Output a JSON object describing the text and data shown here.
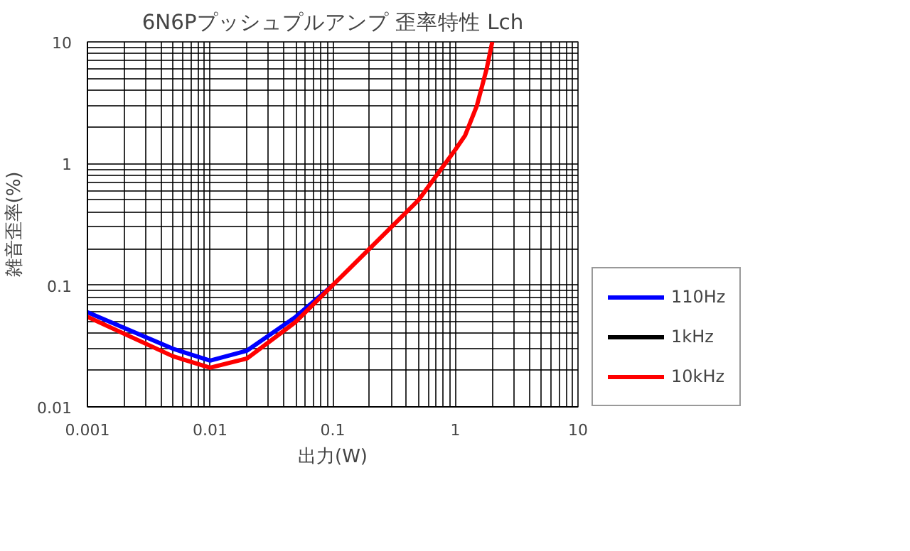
{
  "chart_data": {
    "type": "line",
    "title": "6N6Pプッシュプルアンプ 歪率特性 Lch",
    "xlabel": "出力(W)",
    "ylabel": "雑音歪率(%)",
    "log": "xy",
    "grid": true,
    "legend": "right",
    "xlim": [
      0.001,
      10
    ],
    "ylim": [
      0.01,
      10
    ],
    "xticks": [
      0.001,
      {
        "value": 0.002,
        "label": null
      },
      {
        "value": 0.003,
        "label": null
      },
      {
        "value": 0.004,
        "label": null
      },
      {
        "value": 0.005,
        "label": null
      },
      {
        "value": 0.006,
        "label": null
      },
      {
        "value": 0.007,
        "label": null
      },
      {
        "value": 0.008,
        "label": null
      },
      {
        "value": 0.009,
        "label": null
      },
      0.01,
      {
        "value": 0.02,
        "label": null
      },
      {
        "value": 0.03,
        "label": null
      },
      {
        "value": 0.04,
        "label": null
      },
      {
        "value": 0.05,
        "label": null
      },
      {
        "value": 0.06,
        "label": null
      },
      {
        "value": 0.07,
        "label": null
      },
      {
        "value": 0.08,
        "label": null
      },
      {
        "value": 0.09,
        "label": null
      },
      0.1,
      {
        "value": 0.2,
        "label": null
      },
      {
        "value": 0.3,
        "label": null
      },
      {
        "value": 0.4,
        "label": null
      },
      {
        "value": 0.5,
        "label": null
      },
      {
        "value": 0.6,
        "label": null
      },
      {
        "value": 0.7,
        "label": null
      },
      {
        "value": 0.8,
        "label": null
      },
      {
        "value": 0.9,
        "label": null
      },
      1,
      {
        "value": 2,
        "label": null
      },
      {
        "value": 3,
        "label": null
      },
      {
        "value": 4,
        "label": null
      },
      {
        "value": 5,
        "label": null
      },
      {
        "value": 6,
        "label": null
      },
      {
        "value": 7,
        "label": null
      },
      {
        "value": 8,
        "label": null
      },
      {
        "value": 9,
        "label": null
      },
      10
    ],
    "yticks": [
      0.01,
      {
        "value": 0.02,
        "label": null
      },
      {
        "value": 0.03,
        "label": null
      },
      {
        "value": 0.04,
        "label": null
      },
      {
        "value": 0.05,
        "label": null
      },
      {
        "value": 0.06,
        "label": null
      },
      {
        "value": 0.07,
        "label": null
      },
      {
        "value": 0.08,
        "label": null
      },
      {
        "value": 0.09,
        "label": null
      },
      0.1,
      {
        "value": 0.2,
        "label": null
      },
      {
        "value": 0.3,
        "label": null
      },
      {
        "value": 0.4,
        "label": null
      },
      {
        "value": 0.5,
        "label": null
      },
      {
        "value": 0.6,
        "label": null
      },
      {
        "value": 0.7,
        "label": null
      },
      {
        "value": 0.8,
        "label": null
      },
      {
        "value": 0.9,
        "label": null
      },
      1,
      {
        "value": 2,
        "label": null
      },
      {
        "value": 3,
        "label": null
      },
      {
        "value": 4,
        "label": null
      },
      {
        "value": 5,
        "label": null
      },
      {
        "value": 6,
        "label": null
      },
      {
        "value": 7,
        "label": null
      },
      {
        "value": 8,
        "label": null
      },
      {
        "value": 9,
        "label": null
      },
      10
    ],
    "x": [
      0.001,
      0.005,
      0.01,
      0.02,
      0.05,
      0.1,
      0.2,
      0.5,
      1,
      1.2,
      1.5,
      1.8,
      2
    ],
    "series": [
      {
        "name": "110Hz",
        "color": "#0000ff",
        "values": [
          0.06,
          0.03,
          0.024,
          0.029,
          0.055,
          0.1,
          null,
          null,
          null,
          null,
          null,
          null,
          null
        ]
      },
      {
        "name": "1kHz",
        "color": "#000000",
        "values": [
          null,
          null,
          null,
          null,
          null,
          null,
          null,
          null,
          null,
          null,
          null,
          null,
          null
        ]
      },
      {
        "name": "10kHz",
        "color": "#ff0000",
        "values": [
          0.055,
          0.026,
          0.021,
          0.025,
          0.05,
          0.1,
          0.2,
          0.5,
          1.3,
          1.7,
          3,
          6,
          10
        ]
      }
    ]
  }
}
